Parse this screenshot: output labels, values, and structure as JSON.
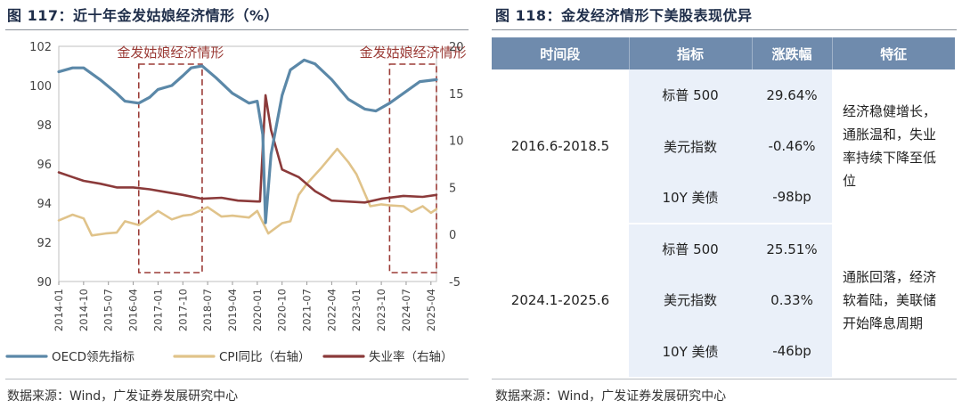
{
  "left": {
    "title": "图 117：近十年金发姑娘经济情形（%）",
    "source": "数据来源：Wind，广发证券发展研究中心"
  },
  "right": {
    "title": "图 118：金发经济情形下美股表现优异",
    "source": "数据来源：Wind，广发证券发展研究中心",
    "table": {
      "headers": [
        "时间段",
        "指标",
        "涨跌幅",
        "特征"
      ],
      "groups": [
        {
          "period": "2016.6-2018.5",
          "feature": "经济稳健增长，通胀温和，失业率持续下降至低位",
          "rows": [
            {
              "metric": "标普 500",
              "change": "29.64%"
            },
            {
              "metric": "美元指数",
              "change": "-0.46%"
            },
            {
              "metric": "10Y 美债",
              "change": "-98bp"
            }
          ]
        },
        {
          "period": "2024.1-2025.6",
          "feature": "通胀回落，经济软着陆，美联储开始降息周期",
          "rows": [
            {
              "metric": "标普 500",
              "change": "25.51%"
            },
            {
              "metric": "美元指数",
              "change": "0.33%"
            },
            {
              "metric": "10Y 美债",
              "change": "-46bp"
            }
          ]
        }
      ]
    }
  },
  "chart_data": {
    "type": "line",
    "title": "近十年金发姑娘经济情形（%）",
    "x_range": [
      "2014-01",
      "2025-06"
    ],
    "x_ticks": [
      "2014-01",
      "2014-10",
      "2015-07",
      "2016-04",
      "2017-01",
      "2017-10",
      "2018-07",
      "2019-04",
      "2020-01",
      "2020-10",
      "2021-07",
      "2022-04",
      "2023-01",
      "2023-10",
      "2024-07",
      "2025-04"
    ],
    "y_left": {
      "min": 90,
      "max": 102,
      "ticks": [
        90,
        92,
        94,
        96,
        98,
        100,
        102
      ]
    },
    "y_right": {
      "min": -5,
      "max": 20,
      "ticks": [
        -5,
        0,
        5,
        10,
        15,
        20
      ]
    },
    "annotations": [
      {
        "label": "金发姑娘经济情形",
        "start": "2016-06",
        "end": "2018-05"
      },
      {
        "label": "金发姑娘经济情形",
        "start": "2024-01",
        "end": "2025-06"
      }
    ],
    "series": [
      {
        "name": "OECD领先指标",
        "axis": "left",
        "color": "#5b88a8",
        "points": [
          [
            "2014-01",
            100.7
          ],
          [
            "2014-06",
            100.9
          ],
          [
            "2014-10",
            100.9
          ],
          [
            "2015-04",
            100.3
          ],
          [
            "2015-10",
            99.6
          ],
          [
            "2016-01",
            99.2
          ],
          [
            "2016-06",
            99.1
          ],
          [
            "2016-10",
            99.4
          ],
          [
            "2017-01",
            99.8
          ],
          [
            "2017-06",
            100.0
          ],
          [
            "2017-10",
            100.5
          ],
          [
            "2018-01",
            100.9
          ],
          [
            "2018-05",
            101.0
          ],
          [
            "2018-10",
            100.4
          ],
          [
            "2019-04",
            99.6
          ],
          [
            "2019-10",
            99.1
          ],
          [
            "2020-01",
            99.2
          ],
          [
            "2020-03",
            97.5
          ],
          [
            "2020-04",
            93.0
          ],
          [
            "2020-06",
            96.5
          ],
          [
            "2020-10",
            99.5
          ],
          [
            "2021-01",
            100.8
          ],
          [
            "2021-06",
            101.3
          ],
          [
            "2021-10",
            101.1
          ],
          [
            "2022-04",
            100.3
          ],
          [
            "2022-10",
            99.3
          ],
          [
            "2023-04",
            98.8
          ],
          [
            "2023-08",
            98.7
          ],
          [
            "2024-01",
            99.1
          ],
          [
            "2024-07",
            99.7
          ],
          [
            "2024-12",
            100.2
          ],
          [
            "2025-06",
            100.3
          ]
        ]
      },
      {
        "name": "CPI同比（右轴）",
        "axis": "right",
        "color": "#e0c38a",
        "points": [
          [
            "2014-01",
            1.5
          ],
          [
            "2014-06",
            2.1
          ],
          [
            "2014-10",
            1.7
          ],
          [
            "2015-01",
            -0.1
          ],
          [
            "2015-06",
            0.1
          ],
          [
            "2015-10",
            0.2
          ],
          [
            "2016-01",
            1.4
          ],
          [
            "2016-06",
            1.0
          ],
          [
            "2017-01",
            2.5
          ],
          [
            "2017-06",
            1.6
          ],
          [
            "2017-10",
            2.0
          ],
          [
            "2018-01",
            2.1
          ],
          [
            "2018-07",
            2.9
          ],
          [
            "2018-12",
            1.9
          ],
          [
            "2019-04",
            2.0
          ],
          [
            "2019-10",
            1.8
          ],
          [
            "2020-01",
            2.5
          ],
          [
            "2020-05",
            0.1
          ],
          [
            "2020-10",
            1.2
          ],
          [
            "2021-01",
            1.4
          ],
          [
            "2021-04",
            4.2
          ],
          [
            "2021-07",
            5.4
          ],
          [
            "2021-12",
            7.0
          ],
          [
            "2022-06",
            9.1
          ],
          [
            "2022-10",
            7.7
          ],
          [
            "2023-01",
            6.4
          ],
          [
            "2023-06",
            3.0
          ],
          [
            "2023-10",
            3.2
          ],
          [
            "2024-01",
            3.1
          ],
          [
            "2024-06",
            3.0
          ],
          [
            "2024-09",
            2.4
          ],
          [
            "2025-01",
            3.0
          ],
          [
            "2025-04",
            2.3
          ],
          [
            "2025-06",
            2.7
          ]
        ]
      },
      {
        "name": "失业率（右轴）",
        "axis": "right",
        "color": "#8b3a3a",
        "points": [
          [
            "2014-01",
            6.6
          ],
          [
            "2014-06",
            6.1
          ],
          [
            "2014-10",
            5.7
          ],
          [
            "2015-04",
            5.4
          ],
          [
            "2015-10",
            5.0
          ],
          [
            "2016-04",
            5.0
          ],
          [
            "2016-10",
            4.8
          ],
          [
            "2017-04",
            4.5
          ],
          [
            "2017-10",
            4.2
          ],
          [
            "2018-05",
            3.8
          ],
          [
            "2018-12",
            3.9
          ],
          [
            "2019-06",
            3.6
          ],
          [
            "2020-01",
            3.5
          ],
          [
            "2020-02",
            3.5
          ],
          [
            "2020-04",
            14.8
          ],
          [
            "2020-06",
            11.1
          ],
          [
            "2020-10",
            6.9
          ],
          [
            "2021-04",
            6.1
          ],
          [
            "2021-10",
            4.6
          ],
          [
            "2022-04",
            3.6
          ],
          [
            "2023-04",
            3.4
          ],
          [
            "2023-10",
            3.8
          ],
          [
            "2024-06",
            4.1
          ],
          [
            "2025-01",
            4.0
          ],
          [
            "2025-06",
            4.2
          ]
        ]
      }
    ],
    "legend": [
      "OECD领先指标",
      "CPI同比（右轴）",
      "失业率（右轴）"
    ]
  }
}
